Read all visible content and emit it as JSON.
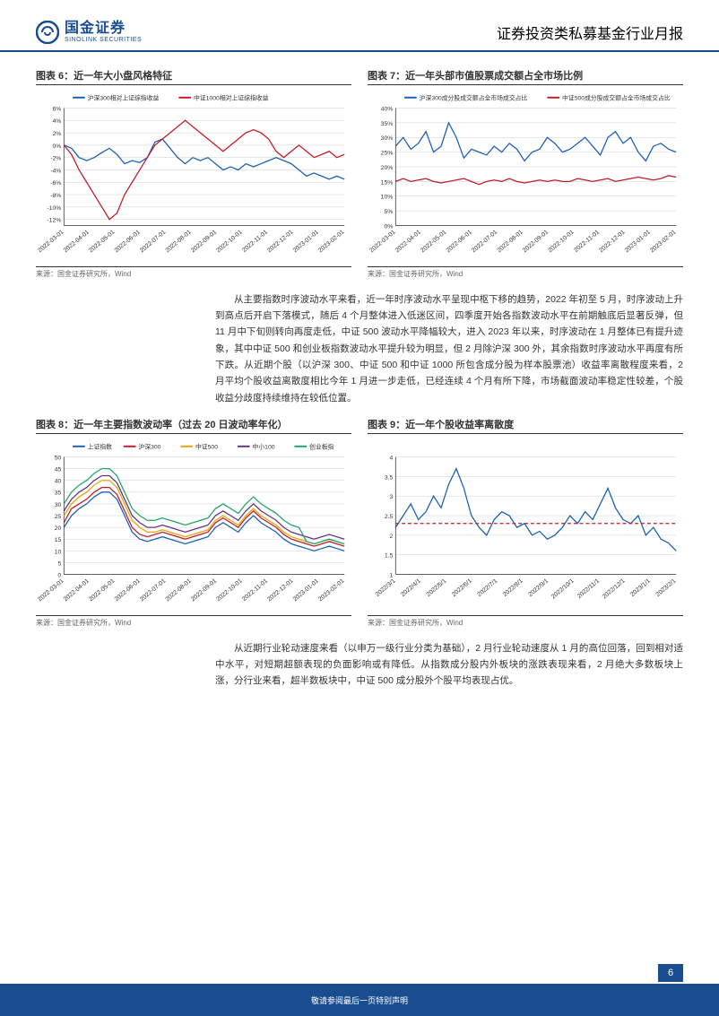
{
  "header": {
    "logo_cn": "国金证券",
    "logo_en": "SINOLINK SECURITIES",
    "doc_type": "证券投资类私募基金行业月报"
  },
  "chart6": {
    "title": "图表 6：近一年大小盘风格特征",
    "type": "line",
    "legend": [
      {
        "label": "沪深300相对上证综指收益",
        "color": "#1a5fb4"
      },
      {
        "label": "中证1000相对上证综指收益",
        "color": "#c01c28"
      }
    ],
    "x_labels": [
      "2022-03-01",
      "2022-04-01",
      "2022-05-01",
      "2022-06-01",
      "2022-07-01",
      "2022-08-01",
      "2022-09-01",
      "2022-10-01",
      "2022-11-01",
      "2022-12-01",
      "2023-01-01",
      "2023-02-01"
    ],
    "y_ticks": [
      "-12%",
      "-10%",
      "-8%",
      "-6%",
      "-4%",
      "-2%",
      "0%",
      "2%",
      "4%",
      "6%"
    ],
    "ylim": [
      -13,
      6
    ],
    "series": {
      "hs300": [
        0,
        -0.5,
        -2,
        -2.5,
        -2,
        -1.2,
        -0.5,
        -1.5,
        -3,
        -2.5,
        -2.8,
        -2,
        0.5,
        1,
        -0.5,
        -2,
        -3,
        -2,
        -2.5,
        -2,
        -3,
        -4,
        -3.5,
        -4,
        -3,
        -3.5,
        -3,
        -2.5,
        -2,
        -2.5,
        -3,
        -4,
        -5,
        -4.5,
        -5,
        -5.5,
        -5,
        -5.5
      ],
      "zz1000": [
        0,
        -1.5,
        -4,
        -6,
        -8,
        -10,
        -12,
        -11,
        -8,
        -6,
        -4,
        -2,
        0,
        1,
        2,
        3,
        4,
        3,
        2,
        1,
        0,
        -1,
        0,
        1,
        2,
        2.5,
        2,
        1,
        -1,
        -2,
        -1,
        0,
        -1,
        -2,
        -1.5,
        -1,
        -2,
        -1.5
      ]
    },
    "source": "来源：国金证券研究所，Wind",
    "background_color": "#ffffff",
    "grid_color": "#d0d0d0",
    "axis_fontsize": 7,
    "title_fontsize": 11
  },
  "chart7": {
    "title": "图表 7：近一年头部市值股票成交额占全市场比例",
    "type": "line",
    "legend": [
      {
        "label": "沪深300成分股成交额占全市场成交占比",
        "color": "#1a5fb4"
      },
      {
        "label": "中证500成分股成交额占全市场成交占比",
        "color": "#c01c28"
      }
    ],
    "x_labels": [
      "2022-03-01",
      "2022-04-01",
      "2022-05-01",
      "2022-06-01",
      "2022-07-01",
      "2022-08-01",
      "2022-09-01",
      "2022-10-01",
      "2022-11-01",
      "2022-12-01",
      "2023-01-01",
      "2023-02-01"
    ],
    "y_ticks": [
      "0%",
      "5%",
      "10%",
      "15%",
      "20%",
      "25%",
      "30%",
      "35%",
      "40%"
    ],
    "ylim": [
      0,
      40
    ],
    "series": {
      "hs300_vol": [
        27,
        30,
        26,
        28,
        32,
        25,
        27,
        35,
        30,
        23,
        26,
        25,
        24,
        27,
        25,
        28,
        26,
        22,
        25,
        26,
        30,
        28,
        25,
        26,
        28,
        30,
        27,
        24,
        30,
        32,
        28,
        30,
        25,
        22,
        27,
        28,
        26,
        25
      ],
      "zz500_vol": [
        15,
        16,
        15,
        15.5,
        16,
        15,
        14.5,
        15,
        15.5,
        16,
        15,
        14,
        15,
        15.5,
        15,
        16,
        15,
        14.5,
        15,
        15.5,
        15,
        15.5,
        15,
        15,
        16,
        15.5,
        15,
        15.5,
        16,
        15,
        15.5,
        16,
        16.5,
        16,
        15.5,
        16,
        17,
        16.5
      ]
    },
    "source": "来源：国金证券研究所，Wind",
    "background_color": "#ffffff",
    "grid_color": "#d0d0d0",
    "axis_fontsize": 7,
    "title_fontsize": 11
  },
  "para1": "从主要指数时序波动水平来看，近一年时序波动水平呈现中枢下移的趋势，2022 年初至 5 月，时序波动上升到高点后开启下落模式，随后 4 个月整体进入低迷区间，四季度开始各指数波动水平在前期触底后显著反弹，但 11 月中下旬则转向再度走低，中证 500 波动水平降幅较大，进入 2023 年以来，时序波动在 1 月整体已有提升迹象，其中中证 500 和创业板指数波动水平提升较为明显，但 2 月除沪深 300 外，其余指数时序波动水平再度有所下跌。从近期个股（以沪深 300、中证 500 和中证 1000 所包含成分股为样本股票池）收益率离散程度来看，2 月平均个股收益离散度相比今年 1 月进一步走低，已经连续 4 个月有所下降，市场截面波动率稳定性较差，个股收益分歧度持续维持在较低位置。",
  "chart8": {
    "title": "图表 8：近一年主要指数波动率（过去 20 日波动率年化）",
    "type": "line",
    "legend": [
      {
        "label": "上证指数",
        "color": "#1a5fb4"
      },
      {
        "label": "沪深300",
        "color": "#c01c28"
      },
      {
        "label": "中证500",
        "color": "#e5a50a"
      },
      {
        "label": "中小100",
        "color": "#613583"
      },
      {
        "label": "创业板指",
        "color": "#26a269"
      }
    ],
    "x_labels": [
      "2022-03-01",
      "2022-04-01",
      "2022-05-01",
      "2022-06-01",
      "2022-07-01",
      "2022-08-01",
      "2022-09-01",
      "2022-10-01",
      "2022-11-01",
      "2022-12-01",
      "2023-01-01",
      "2023-02-01"
    ],
    "y_ticks": [
      "0",
      "5",
      "10",
      "15",
      "20",
      "25",
      "30",
      "35",
      "40",
      "45",
      "50"
    ],
    "ylim": [
      0,
      50
    ],
    "series": {
      "sh": [
        20,
        25,
        28,
        30,
        33,
        35,
        35,
        32,
        25,
        18,
        15,
        14,
        15,
        16,
        15,
        14,
        13,
        14,
        15,
        16,
        20,
        22,
        20,
        18,
        22,
        25,
        22,
        20,
        18,
        15,
        13,
        12,
        11,
        10,
        11,
        12,
        11,
        10
      ],
      "hs300": [
        22,
        28,
        30,
        32,
        35,
        37,
        37,
        34,
        27,
        20,
        17,
        16,
        17,
        18,
        17,
        16,
        15,
        16,
        17,
        18,
        22,
        24,
        22,
        20,
        24,
        27,
        24,
        22,
        20,
        17,
        15,
        14,
        13,
        12,
        13,
        14,
        13,
        12
      ],
      "zz500": [
        25,
        30,
        33,
        35,
        38,
        40,
        40,
        37,
        30,
        23,
        20,
        18,
        18,
        19,
        18,
        17,
        16,
        17,
        18,
        19,
        23,
        25,
        23,
        21,
        25,
        28,
        25,
        23,
        21,
        18,
        16,
        15,
        14,
        13,
        14,
        15,
        14,
        13
      ],
      "zx100": [
        27,
        32,
        35,
        37,
        40,
        42,
        42,
        39,
        32,
        25,
        22,
        20,
        20,
        21,
        20,
        19,
        18,
        19,
        20,
        21,
        25,
        27,
        25,
        23,
        27,
        30,
        27,
        25,
        23,
        20,
        18,
        17,
        16,
        15,
        16,
        17,
        16,
        15
      ],
      "cyb": [
        30,
        35,
        38,
        40,
        43,
        45,
        45,
        42,
        35,
        28,
        25,
        23,
        23,
        24,
        23,
        22,
        21,
        22,
        23,
        24,
        28,
        30,
        28,
        26,
        30,
        33,
        30,
        28,
        26,
        23,
        21,
        20,
        14,
        13,
        14,
        15,
        14,
        13
      ]
    },
    "source": "来源：国金证券研究所，Wind",
    "background_color": "#ffffff",
    "grid_color": "#d0d0d0",
    "axis_fontsize": 7,
    "title_fontsize": 11
  },
  "chart9": {
    "title": "图表 9：近一年个股收益率离散度",
    "type": "line",
    "legend": [],
    "x_labels": [
      "2022/3/1",
      "2022/4/1",
      "2022/5/1",
      "2022/6/1",
      "2022/7/1",
      "2022/8/1",
      "2022/9/1",
      "2022/10/1",
      "2022/11/1",
      "2022/12/1",
      "2023/1/1",
      "2023/2/1"
    ],
    "y_ticks": [
      "1",
      "1.5",
      "2",
      "2.5",
      "3",
      "3.5",
      "4"
    ],
    "ylim": [
      1,
      4
    ],
    "series": {
      "dispersion": [
        2.2,
        2.5,
        2.8,
        2.4,
        2.6,
        3.0,
        2.7,
        3.3,
        3.7,
        3.2,
        2.5,
        2.2,
        2.0,
        2.4,
        2.6,
        2.5,
        2.2,
        2.3,
        2.0,
        2.1,
        1.9,
        2.0,
        2.2,
        2.5,
        2.3,
        2.6,
        2.4,
        2.8,
        3.2,
        2.7,
        2.4,
        2.3,
        2.5,
        2.0,
        2.2,
        1.9,
        1.8,
        1.6
      ],
      "mean_line": 2.3
    },
    "line_color": "#1a5fb4",
    "mean_color": "#c01c28",
    "source": "来源：国金证券研究所，Wind",
    "background_color": "#ffffff",
    "grid_color": "#d0d0d0",
    "axis_fontsize": 7,
    "title_fontsize": 11
  },
  "para2": "从近期行业轮动速度来看（以申万一级行业分类为基础），2 月行业轮动速度从 1 月的高位回落，回到相对适中水平，对短期超额表现的负面影响或有降低。从指数成分股内外板块的涨跌表现来看，2 月绝大多数板块上涨，分行业来看，超半数板块中，中证 500 成分股外个股平均表现占优。",
  "footer": {
    "text": "敬请参阅最后一页特别声明",
    "page": "6"
  }
}
